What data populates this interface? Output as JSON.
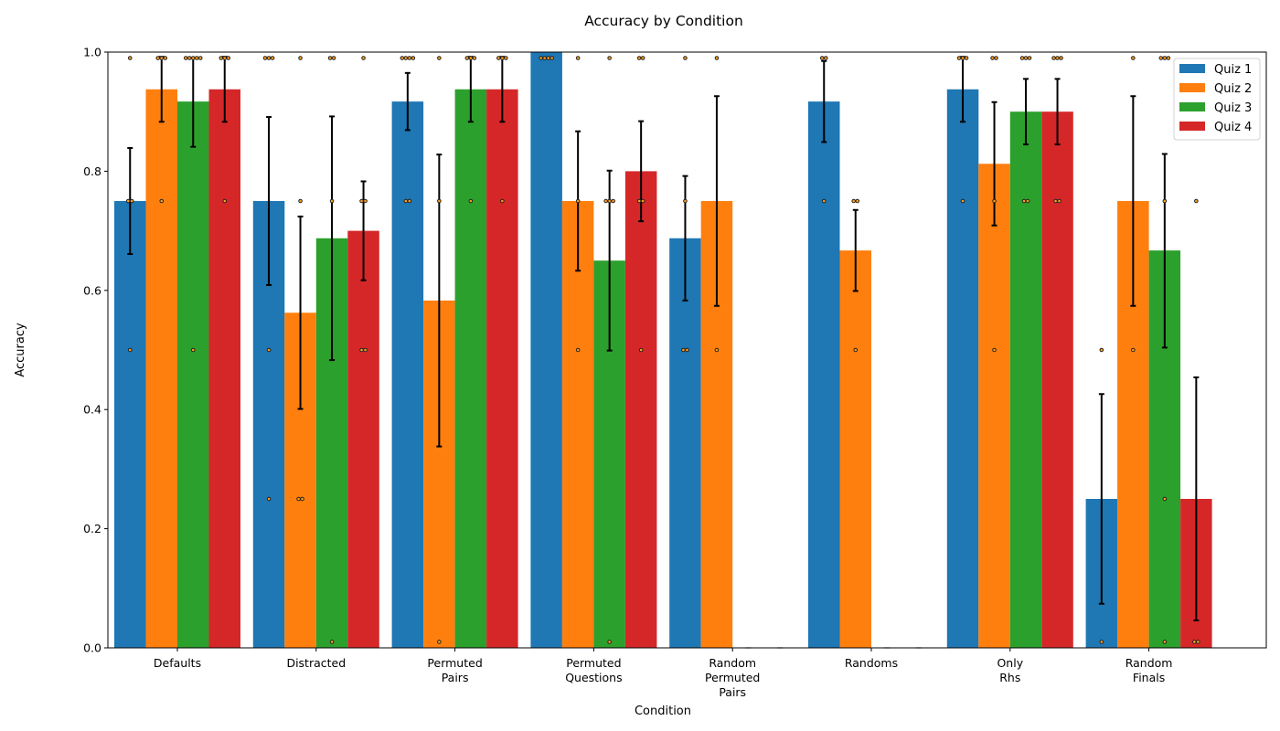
{
  "chart_data": {
    "type": "bar",
    "title": "Accuracy by Condition",
    "xlabel": "Condition",
    "ylabel": "Accuracy",
    "ylim": [
      0,
      1.0
    ],
    "yticks": [
      "0.0",
      "0.2",
      "0.4",
      "0.6",
      "0.8",
      "1.0"
    ],
    "grid": false,
    "legend_position": "top-right",
    "categories": [
      [
        "Defaults"
      ],
      [
        "Distracted"
      ],
      [
        "Permuted",
        "Pairs"
      ],
      [
        "Permuted",
        "Questions"
      ],
      [
        "Random",
        "Permuted",
        "Pairs"
      ],
      [
        "Randoms"
      ],
      [
        "Only",
        "Rhs"
      ],
      [
        "Random",
        "Finals"
      ]
    ],
    "series": [
      {
        "name": "Quiz 1",
        "color": "#1f77b4",
        "values": [
          0.75,
          0.75,
          0.917,
          1.0,
          0.6875,
          0.917,
          0.9375,
          0.25
        ],
        "err_low": [
          0.661,
          0.609,
          0.869,
          1.0,
          0.583,
          0.849,
          0.883,
          0.074
        ],
        "err_high": [
          0.839,
          0.891,
          0.965,
          1.0,
          0.792,
          0.985,
          0.992,
          0.426
        ],
        "points": [
          [
            0.99,
            0.75,
            0.75,
            0.5
          ],
          [
            0.99,
            0.99,
            0.99,
            0.5,
            0.25
          ],
          [
            0.99,
            0.99,
            0.99,
            0.99,
            0.75,
            0.75
          ],
          [
            0.99,
            0.99,
            0.99,
            0.99
          ],
          [
            0.99,
            0.75,
            0.5,
            0.5
          ],
          [
            0.99,
            0.99,
            0.75
          ],
          [
            0.99,
            0.99,
            0.99,
            0.75
          ],
          [
            0.5,
            0.01
          ]
        ]
      },
      {
        "name": "Quiz 2",
        "color": "#ff7f0e",
        "values": [
          0.9375,
          0.5625,
          0.583,
          0.75,
          0.75,
          0.667,
          0.8125,
          0.75
        ],
        "err_low": [
          0.883,
          0.401,
          0.338,
          0.633,
          0.574,
          0.599,
          0.709,
          0.574
        ],
        "err_high": [
          0.992,
          0.724,
          0.828,
          0.867,
          0.926,
          0.735,
          0.916,
          0.926
        ],
        "points": [
          [
            0.99,
            0.99,
            0.99,
            0.75
          ],
          [
            0.99,
            0.75,
            0.25,
            0.25
          ],
          [
            0.99,
            0.75,
            0.01
          ],
          [
            0.99,
            0.75,
            0.5
          ],
          [
            0.99,
            0.5
          ],
          [
            0.75,
            0.75,
            0.5
          ],
          [
            0.99,
            0.99,
            0.75,
            0.5
          ],
          [
            0.99,
            0.5
          ]
        ]
      },
      {
        "name": "Quiz 3",
        "color": "#2ca02c",
        "values": [
          0.917,
          0.6875,
          0.9375,
          0.65,
          0.0,
          0.0,
          0.9,
          0.667
        ],
        "err_low": [
          0.841,
          0.483,
          0.883,
          0.499,
          null,
          null,
          0.845,
          0.504
        ],
        "err_high": [
          0.99,
          0.892,
          0.992,
          0.801,
          null,
          null,
          0.955,
          0.829
        ],
        "points": [
          [
            0.99,
            0.99,
            0.99,
            0.99,
            0.99,
            0.5
          ],
          [
            0.99,
            0.99,
            0.75,
            0.01
          ],
          [
            0.99,
            0.99,
            0.99,
            0.75
          ],
          [
            0.99,
            0.75,
            0.75,
            0.75,
            0.01
          ],
          [],
          [],
          [
            0.99,
            0.99,
            0.99,
            0.75,
            0.75
          ],
          [
            0.99,
            0.99,
            0.99,
            0.75,
            0.25,
            0.01
          ]
        ]
      },
      {
        "name": "Quiz 4",
        "color": "#d62728",
        "values": [
          0.9375,
          0.7,
          0.9375,
          0.8,
          0.0,
          0.0,
          0.9,
          0.25
        ],
        "err_low": [
          0.883,
          0.617,
          0.883,
          0.716,
          null,
          null,
          0.845,
          0.046
        ],
        "err_high": [
          0.992,
          0.783,
          0.992,
          0.884,
          null,
          null,
          0.955,
          0.454
        ],
        "points": [
          [
            0.99,
            0.99,
            0.99,
            0.75
          ],
          [
            0.99,
            0.75,
            0.75,
            0.5,
            0.5
          ],
          [
            0.99,
            0.99,
            0.99,
            0.75
          ],
          [
            0.99,
            0.99,
            0.75,
            0.75,
            0.5
          ],
          [],
          [],
          [
            0.99,
            0.99,
            0.99,
            0.75,
            0.75
          ],
          [
            0.75,
            0.01,
            0.01
          ]
        ]
      }
    ]
  }
}
